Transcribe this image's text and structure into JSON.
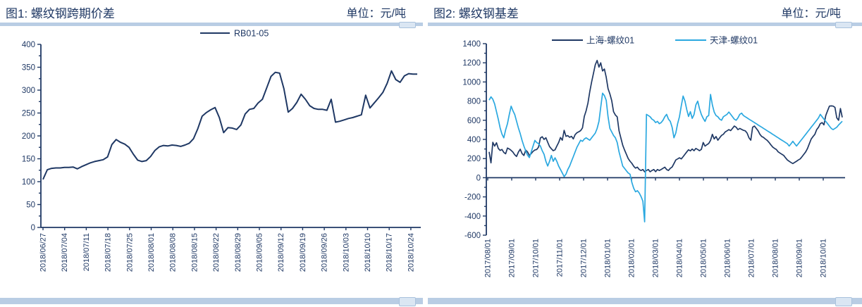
{
  "colors": {
    "navy": "#1f3864",
    "cyan": "#2aa8e0",
    "bar": "#b9cde4",
    "bar_thumb": "#dae6f3",
    "text": "#1f3864"
  },
  "panels": [
    {
      "title": "图1: 螺纹钢跨期价差",
      "unit": "单位：元/吨",
      "chart_data": {
        "type": "line",
        "title": "",
        "xlabel": "",
        "ylabel": "",
        "ylim": [
          0,
          400
        ],
        "y_tick_step": 50,
        "y_minor_step": 25,
        "grid": false,
        "legend_position": "top-center",
        "y_labels": [
          "0",
          "50",
          "100",
          "150",
          "200",
          "250",
          "300",
          "350",
          "400"
        ],
        "x_labels": [
          "2018/06/27",
          "2018/07/04",
          "2018/07/11",
          "2018/07/18",
          "2018/07/25",
          "2018/08/01",
          "2018/08/08",
          "2018/08/15",
          "2018/08/22",
          "2018/08/29",
          "2018/09/05",
          "2018/09/12",
          "2018/09/19",
          "2018/09/26",
          "2018/10/03",
          "2018/10/10",
          "2018/10/17",
          "2018/10/24"
        ],
        "series": [
          {
            "name": "RB01-05",
            "color_key": "navy",
            "values": [
              105,
              126,
              129,
              130,
              130,
              131,
              131,
              132,
              128,
              133,
              137,
              141,
              144,
              146,
              148,
              154,
              181,
              192,
              186,
              182,
              175,
              160,
              147,
              144,
              146,
              155,
              168,
              176,
              179,
              178,
              180,
              179,
              177,
              180,
              184,
              194,
              216,
              243,
              251,
              257,
              262,
              240,
              207,
              218,
              217,
              214,
              224,
              248,
              258,
              260,
              272,
              280,
              305,
              330,
              339,
              337,
              303,
              252,
              260,
              273,
              291,
              280,
              266,
              260,
              258,
              258,
              256,
              280,
              230,
              232,
              235,
              238,
              240,
              243,
              246,
              289,
              261,
              272,
              283,
              295,
              315,
              342,
              323,
              317,
              331,
              336,
              335,
              335
            ]
          }
        ]
      }
    },
    {
      "title": "图2: 螺纹钢基差",
      "unit": "单位：元/吨",
      "chart_data": {
        "type": "line",
        "title": "",
        "xlabel": "",
        "ylabel": "",
        "ylim": [
          -600,
          1400
        ],
        "y_tick_step": 200,
        "y_minor_step": 100,
        "grid": false,
        "legend_position": "top-center",
        "y_labels": [
          "-600",
          "-400",
          "-200",
          "0",
          "200",
          "400",
          "600",
          "800",
          "1000",
          "1200",
          "1400"
        ],
        "x_labels": [
          "2017/08/01",
          "2017/09/01",
          "2017/10/01",
          "2017/11/01",
          "2017/12/01",
          "2018/01/01",
          "2018/02/01",
          "2018/03/01",
          "2018/04/01",
          "2018/05/01",
          "2018/06/01",
          "2018/07/01",
          "2018/08/01",
          "2018/09/01",
          "2018/10/01"
        ],
        "series": [
          {
            "name": "上海-螺纹01",
            "color_key": "navy",
            "values": [
              270,
              155,
              370,
              330,
              365,
              305,
              285,
              295,
              265,
              250,
              310,
              300,
              285,
              268,
              240,
              222,
              268,
              298,
              252,
              232,
              288,
              270,
              232,
              252,
              275,
              290,
              295,
              320,
              415,
              428,
              400,
              418,
              370,
              325,
              302,
              282,
              292,
              330,
              368,
              420,
              392,
              495,
              432,
              440,
              422,
              432,
              405,
              450,
              470,
              480,
              492,
              520,
              640,
              700,
              780,
              900,
              1000,
              1090,
              1180,
              1225,
              1155,
              1200,
              1115,
              1135,
              1050,
              930,
              875,
              805,
              690,
              655,
              635,
              490,
              415,
              340,
              290,
              245,
              200,
              172,
              150,
              120,
              100,
              110,
              86,
              75,
              86,
              62,
              75,
              86,
              62,
              76,
              86,
              63,
              86,
              76,
              86,
              98,
              110,
              86,
              76,
              98,
              112,
              148,
              185,
              196,
              208,
              196,
              220,
              245,
              270,
              292,
              280,
              300,
              282,
              306,
              295,
              282,
              296,
              368,
              330,
              345,
              357,
              390,
              453,
              405,
              430,
              392,
              418,
              442,
              454,
              478,
              490,
              502,
              492,
              515,
              540,
              527,
              502,
              515,
              505,
              495,
              490,
              466,
              418,
              392,
              527,
              540,
              515,
              490,
              453,
              430,
              420,
              404,
              390,
              368,
              343,
              320,
              306,
              294,
              270,
              257,
              245,
              233,
              208,
              185,
              171,
              159,
              148,
              160,
              172,
              185,
              196,
              220,
              245,
              270,
              306,
              355,
              404,
              430,
              453,
              502,
              527,
              565,
              576,
              552,
              649,
              700,
              748,
              750,
              748,
              735,
              625,
              600,
              723,
              630
            ]
          },
          {
            "name": "天津-螺纹01",
            "color_key": "cyan",
            "values": [
              810,
              845,
              820,
              770,
              690,
              610,
              520,
              455,
              417,
              500,
              565,
              660,
              747,
              700,
              660,
              590,
              520,
              460,
              390,
              330,
              280,
              235,
              210,
              270,
              330,
              390,
              368,
              355,
              331,
              282,
              245,
              171,
              122,
              171,
              233,
              171,
              208,
              171,
              122,
              86,
              49,
              12,
              37,
              86,
              122,
              171,
              220,
              270,
              319,
              355,
              392,
              380,
              404,
              417,
              404,
              392,
              417,
              441,
              466,
              515,
              588,
              735,
              882,
              858,
              809,
              637,
              515,
              478,
              441,
              417,
              368,
              270,
              196,
              122,
              98,
              73,
              49,
              37,
              -49,
              -110,
              -147,
              -135,
              -159,
              -196,
              -245,
              -460,
              662,
              649,
              637,
              612,
              600,
              576,
              588,
              564,
              576,
              600,
              637,
              662,
              612,
              588,
              527,
              417,
              466,
              564,
              637,
              750,
              853,
              800,
              710,
              640,
              690,
              620,
              660,
              760,
              800,
              720,
              660,
              620,
              588,
              637,
              649,
              870,
              760,
              686,
              649,
              637,
              612,
              600,
              637,
              649,
              662,
              686,
              662,
              637,
              612,
              600,
              625,
              662,
              674,
              649,
              637,
              625,
              612,
              600,
              588,
              576,
              564,
              551,
              539,
              527,
              515,
              502,
              490,
              478,
              466,
              453,
              441,
              429,
              417,
              404,
              392,
              380,
              368,
              355,
              331,
              355,
              380,
              355,
              331,
              355,
              380,
              404,
              429,
              453,
              478,
              502,
              527,
              551,
              576,
              600,
              625,
              662,
              637,
              612,
              588,
              564,
              539,
              515,
              502,
              515,
              527,
              551,
              570,
              590
            ]
          }
        ]
      }
    }
  ]
}
